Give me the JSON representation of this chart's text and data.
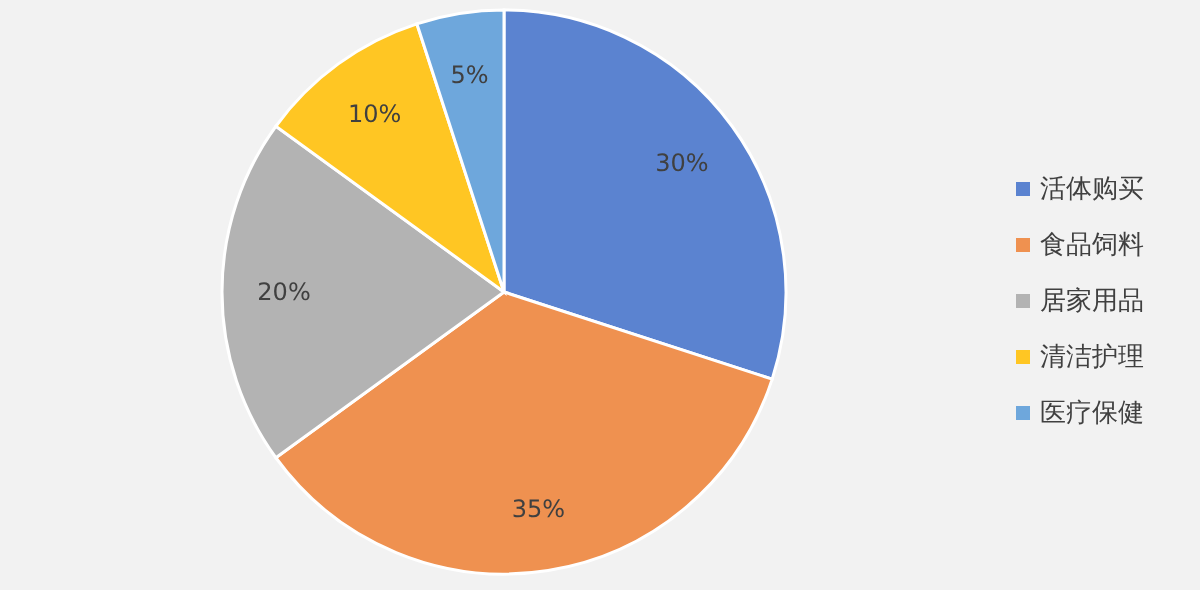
{
  "chart_data": {
    "type": "pie",
    "categories": [
      "活体购买",
      "食品饲料",
      "居家用品",
      "清洁护理",
      "医疗保健"
    ],
    "values": [
      30,
      35,
      20,
      10,
      5
    ],
    "colors": [
      "#5b83d0",
      "#ef9150",
      "#b3b3b3",
      "#ffc623",
      "#6ea7dc"
    ],
    "value_labels": [
      "30%",
      "35%",
      "20%",
      "10%",
      "5%"
    ],
    "legend": "right"
  }
}
